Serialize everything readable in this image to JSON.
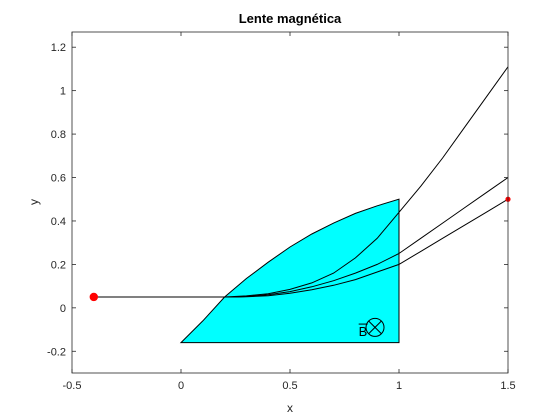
{
  "chart_data": {
    "type": "line",
    "title": "Lente magnética",
    "xlabel": "x",
    "ylabel": "y",
    "xlim": [
      -0.5,
      1.5
    ],
    "ylim": [
      -0.3,
      1.27
    ],
    "xticks": [
      -0.5,
      0,
      0.5,
      1,
      1.5
    ],
    "xtick_labels": [
      "-0.5",
      "0",
      "0.5",
      "1",
      "1.5"
    ],
    "yticks": [
      -0.2,
      0,
      0.2,
      0.4,
      0.6,
      0.8,
      1,
      1.2
    ],
    "ytick_labels": [
      "-0.2",
      "0",
      "0.2",
      "0.4",
      "0.6",
      "0.8",
      "1",
      "1.2"
    ],
    "grid": false,
    "field_region": {
      "color": "#00FFFF",
      "points": [
        [
          0,
          -0.16
        ],
        [
          0.1,
          -0.06
        ],
        [
          0.2,
          0.05
        ],
        [
          0.3,
          0.135
        ],
        [
          0.4,
          0.21
        ],
        [
          0.5,
          0.28
        ],
        [
          0.6,
          0.34
        ],
        [
          0.7,
          0.39
        ],
        [
          0.8,
          0.435
        ],
        [
          0.9,
          0.47
        ],
        [
          1.0,
          0.5
        ],
        [
          1.0,
          -0.16
        ]
      ]
    },
    "field_label": "B",
    "field_symbol": "⊗",
    "series": [
      {
        "color": "#000000",
        "x": [
          -0.4,
          0.2,
          0.3,
          0.4,
          0.5,
          0.6,
          0.7,
          0.8,
          0.9,
          0.95,
          1.0,
          1.1,
          1.2,
          1.3,
          1.4,
          1.5
        ],
        "y": [
          0.05,
          0.05,
          0.055,
          0.065,
          0.085,
          0.115,
          0.16,
          0.23,
          0.32,
          0.38,
          0.44,
          0.56,
          0.69,
          0.83,
          0.97,
          1.11
        ]
      },
      {
        "color": "#000000",
        "x": [
          -0.4,
          0.25,
          0.3,
          0.4,
          0.5,
          0.6,
          0.7,
          0.8,
          0.9,
          1.0,
          1.1,
          1.2,
          1.3,
          1.4,
          1.5
        ],
        "y": [
          0.05,
          0.05,
          0.052,
          0.06,
          0.075,
          0.097,
          0.125,
          0.16,
          0.2,
          0.25,
          0.32,
          0.39,
          0.46,
          0.53,
          0.6
        ]
      },
      {
        "color": "#000000",
        "x": [
          -0.4,
          0.25,
          0.3,
          0.4,
          0.5,
          0.6,
          0.7,
          0.8,
          0.9,
          1.0,
          1.1,
          1.2,
          1.3,
          1.4,
          1.5
        ],
        "y": [
          0.05,
          0.05,
          0.051,
          0.056,
          0.067,
          0.083,
          0.104,
          0.13,
          0.165,
          0.2,
          0.26,
          0.32,
          0.38,
          0.44,
          0.5
        ]
      }
    ],
    "markers": [
      {
        "x": -0.4,
        "y": 0.05,
        "color": "#FF0000",
        "size": "large"
      },
      {
        "x": 1.5,
        "y": 0.5,
        "color": "#FF0000",
        "size": "small"
      }
    ]
  }
}
